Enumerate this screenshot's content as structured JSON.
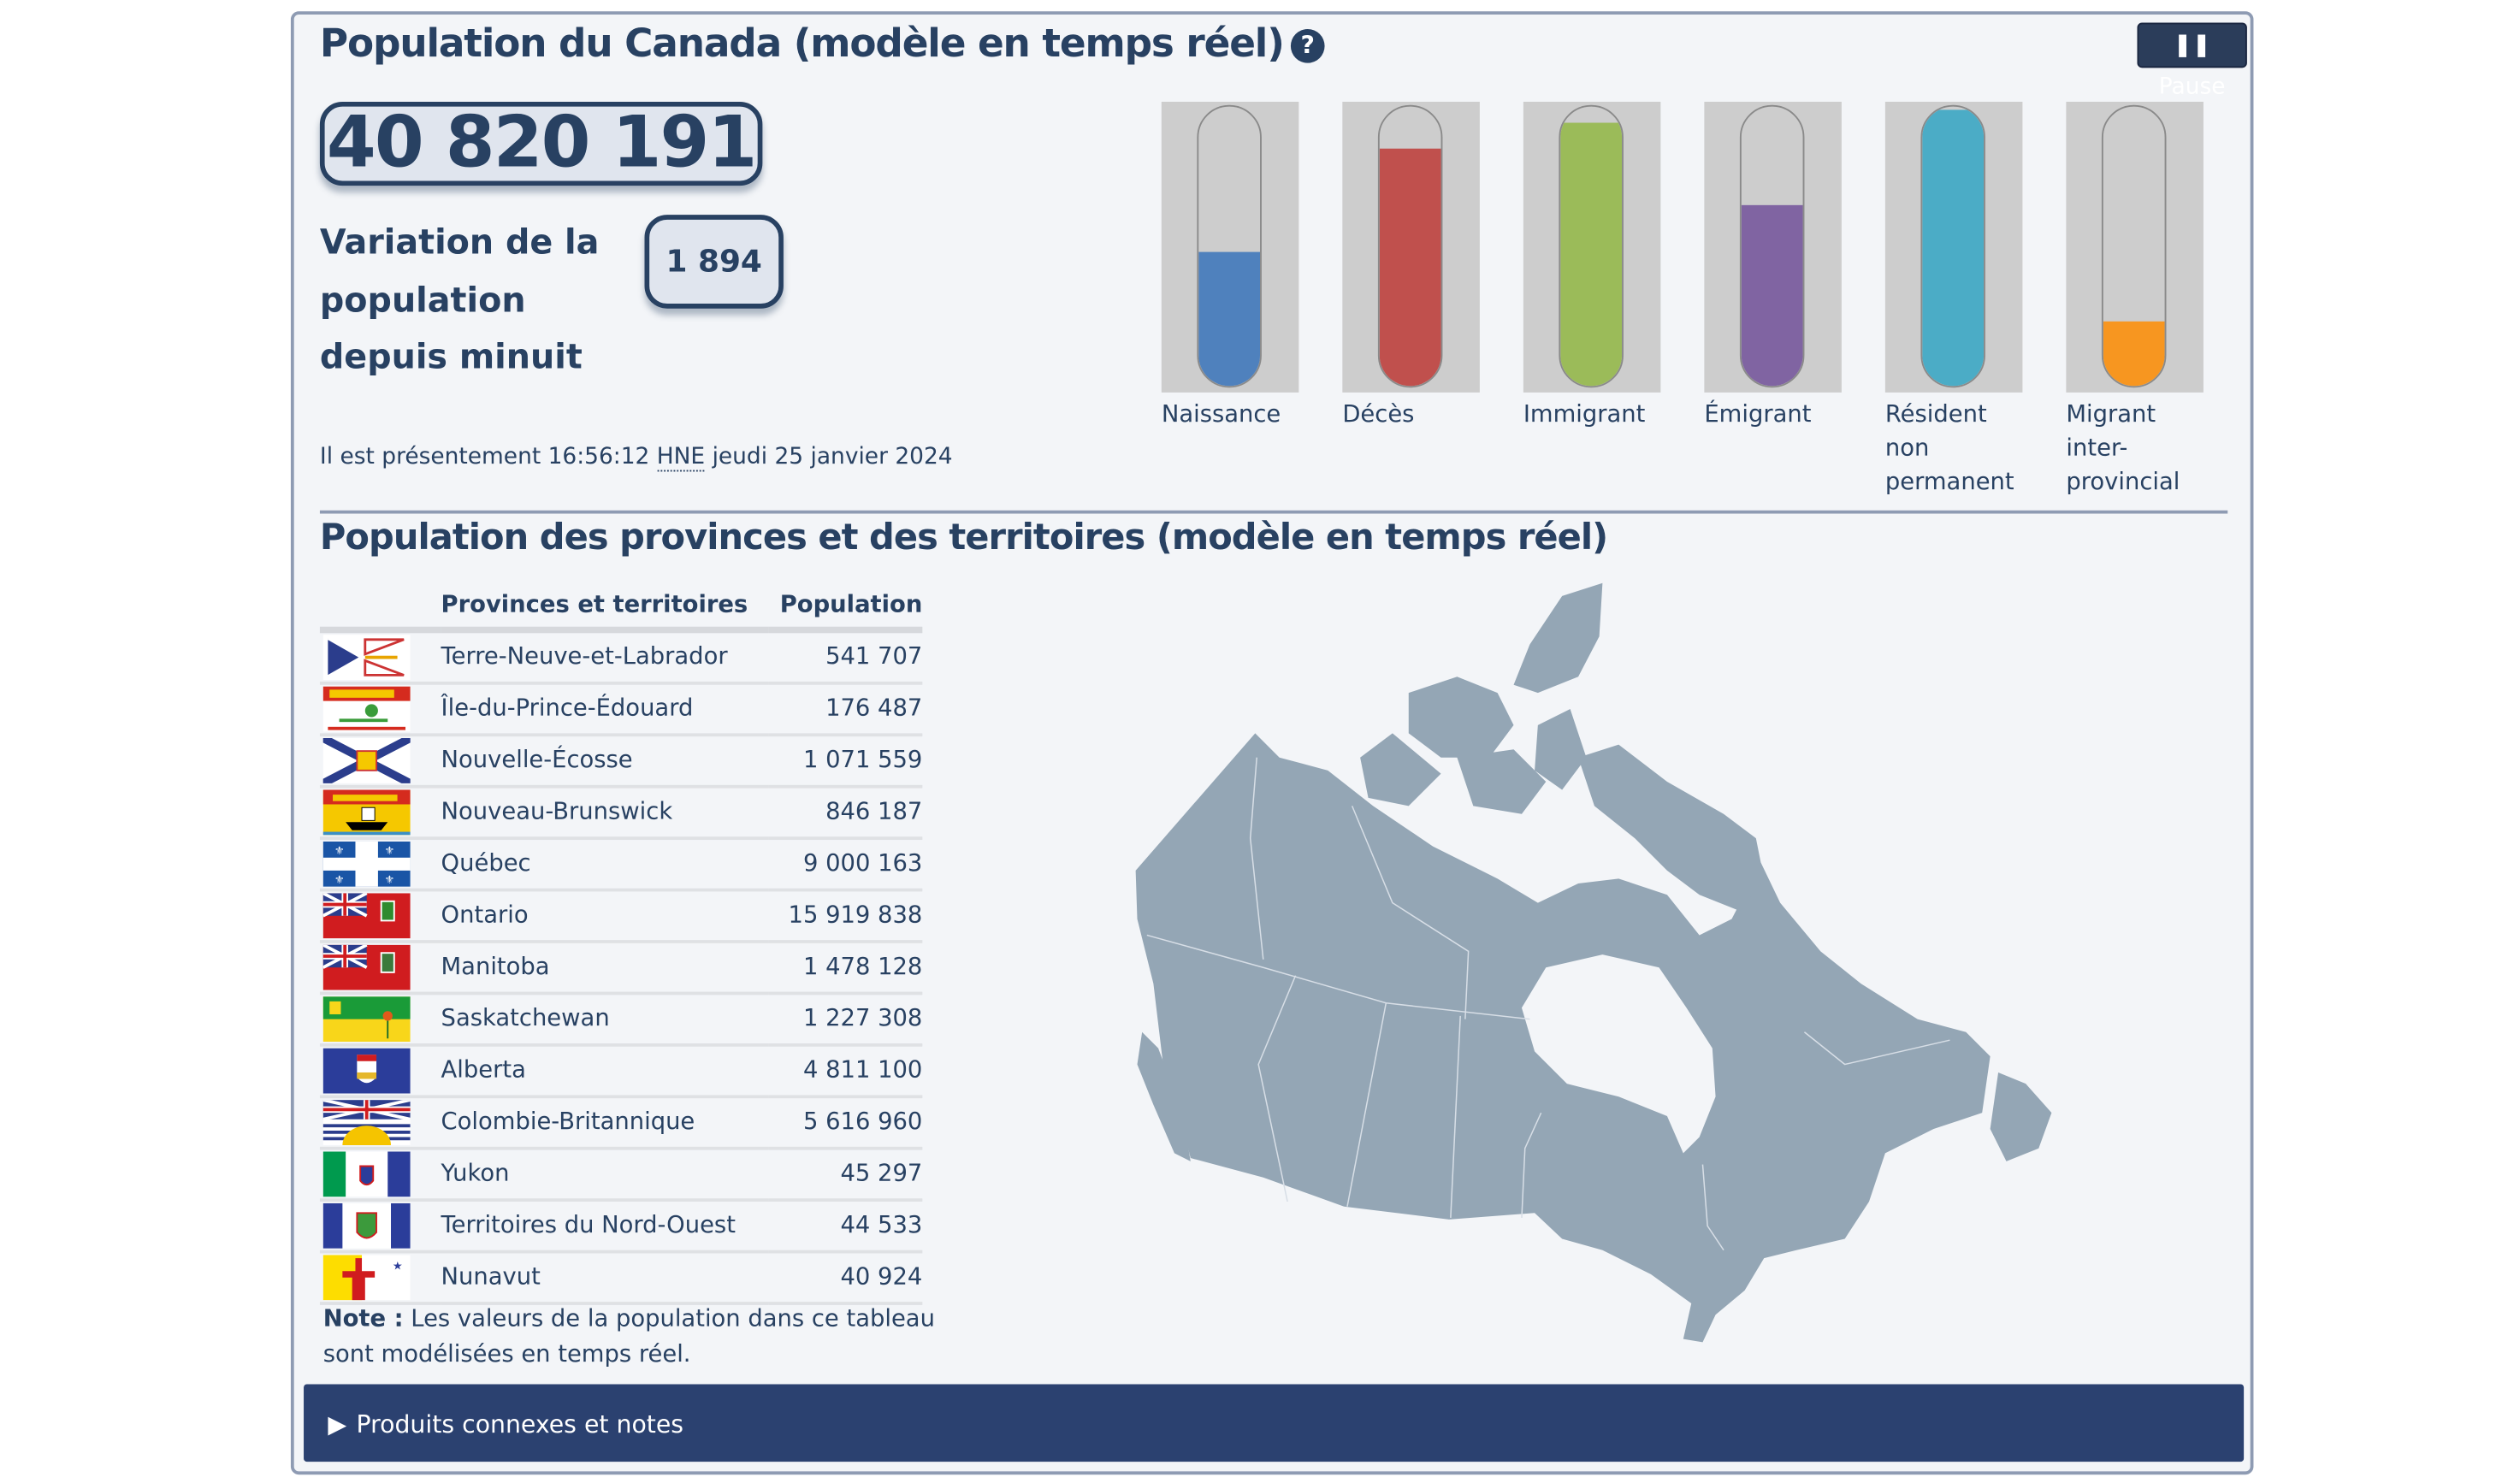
{
  "header": {
    "title": "Population du Canada (modèle en temps réel)",
    "help_icon": "question-circle-icon",
    "pause_label": "Pause",
    "pause_icon": "pause-icon"
  },
  "population": {
    "total": "40 820 191",
    "variation_label": "Variation de la population depuis minuit",
    "variation_value": "1 894"
  },
  "time": {
    "prefix": "Il est présentement 16:56:12",
    "zone": "HNE",
    "date": "jeudi 25 janvier 2024"
  },
  "gauges": [
    {
      "label": "Naissance",
      "color": "#4f81bd",
      "level": 0.48
    },
    {
      "label": "Décès",
      "color": "#c0504d",
      "level": 0.85
    },
    {
      "label": "Immigrant",
      "color": "#9bbb59",
      "level": 0.94
    },
    {
      "label": "Émigrant",
      "color": "#8064a2",
      "level": 0.65
    },
    {
      "label": "Résident non permanent",
      "color": "#4bacc6",
      "level": 0.99
    },
    {
      "label": "Migrant inter-provincial",
      "color": "#f79620",
      "level": 0.23
    }
  ],
  "provinces": {
    "title": "Population des provinces et des territoires (modèle en temps réel)",
    "col_name": "Provinces et territoires",
    "col_pop": "Population",
    "rows": [
      {
        "name": "Terre-Neuve-et-Labrador",
        "pop": "541 707",
        "flag": "nl-flag"
      },
      {
        "name": "Île-du-Prince-Édouard",
        "pop": "176 487",
        "flag": "pe-flag"
      },
      {
        "name": "Nouvelle-Écosse",
        "pop": "1 071 559",
        "flag": "ns-flag"
      },
      {
        "name": "Nouveau-Brunswick",
        "pop": "846 187",
        "flag": "nb-flag"
      },
      {
        "name": "Québec",
        "pop": "9 000 163",
        "flag": "qc-flag"
      },
      {
        "name": "Ontario",
        "pop": "15 919 838",
        "flag": "on-flag"
      },
      {
        "name": "Manitoba",
        "pop": "1 478 128",
        "flag": "mb-flag"
      },
      {
        "name": "Saskatchewan",
        "pop": "1 227 308",
        "flag": "sk-flag"
      },
      {
        "name": "Alberta",
        "pop": "4 811 100",
        "flag": "ab-flag"
      },
      {
        "name": "Colombie-Britannique",
        "pop": "5 616 960",
        "flag": "bc-flag"
      },
      {
        "name": "Yukon",
        "pop": "45 297",
        "flag": "yt-flag"
      },
      {
        "name": "Territoires du Nord-Ouest",
        "pop": "44 533",
        "flag": "nt-flag"
      },
      {
        "name": "Nunavut",
        "pop": "40 924",
        "flag": "nu-flag"
      }
    ],
    "note_bold": "Note :",
    "note": "Les valeurs de la population dans ce tableau sont modélisées en temps réel."
  },
  "map": {
    "color": "#94a6b5"
  },
  "footer": {
    "label": "Produits connexes et notes"
  }
}
